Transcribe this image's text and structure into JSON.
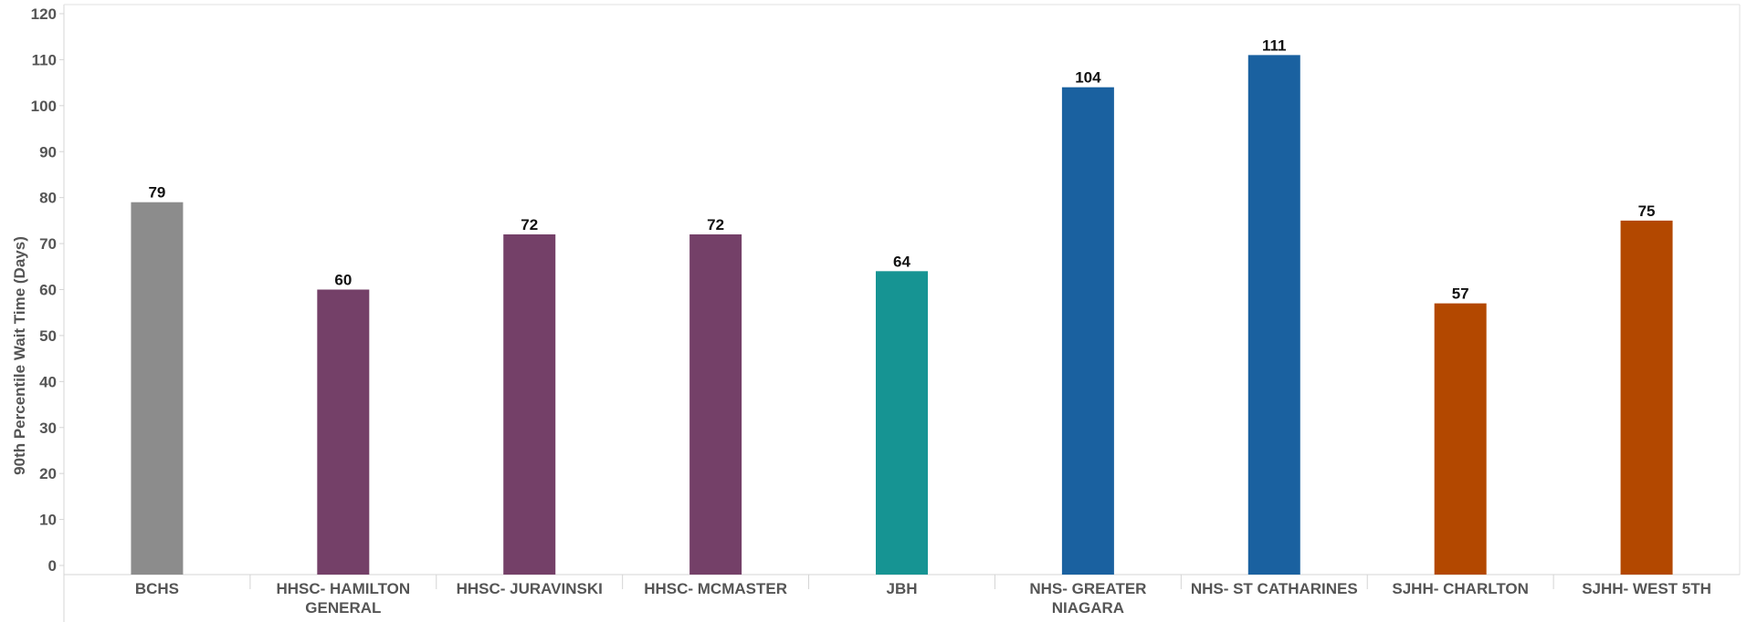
{
  "chart_data": {
    "type": "bar",
    "title": "",
    "xlabel": "",
    "ylabel": "90th Percentile Wait Time (Days)",
    "ylim": [
      0,
      120
    ],
    "yticks": [
      0,
      10,
      20,
      30,
      40,
      50,
      60,
      70,
      80,
      90,
      100,
      110,
      120
    ],
    "grid": false,
    "categories": [
      [
        "BCHS"
      ],
      [
        "HHSC- HAMILTON",
        "GENERAL"
      ],
      [
        "HHSC- JURAVINSKI"
      ],
      [
        "HHSC- MCMASTER"
      ],
      [
        "JBH"
      ],
      [
        "NHS- GREATER",
        "NIAGARA"
      ],
      [
        "NHS- ST CATHARINES"
      ],
      [
        "SJHH- CHARLTON"
      ],
      [
        "SJHH- WEST 5TH"
      ]
    ],
    "values": [
      79,
      60,
      72,
      72,
      64,
      104,
      111,
      57,
      75
    ],
    "bar_colors": [
      "#8c8c8c",
      "#744068",
      "#744068",
      "#744068",
      "#169493",
      "#1a61a0",
      "#1a61a0",
      "#b34800",
      "#b34800"
    ],
    "data_labels": [
      "79",
      "60",
      "72",
      "72",
      "64",
      "104",
      "111",
      "57",
      "75"
    ]
  }
}
